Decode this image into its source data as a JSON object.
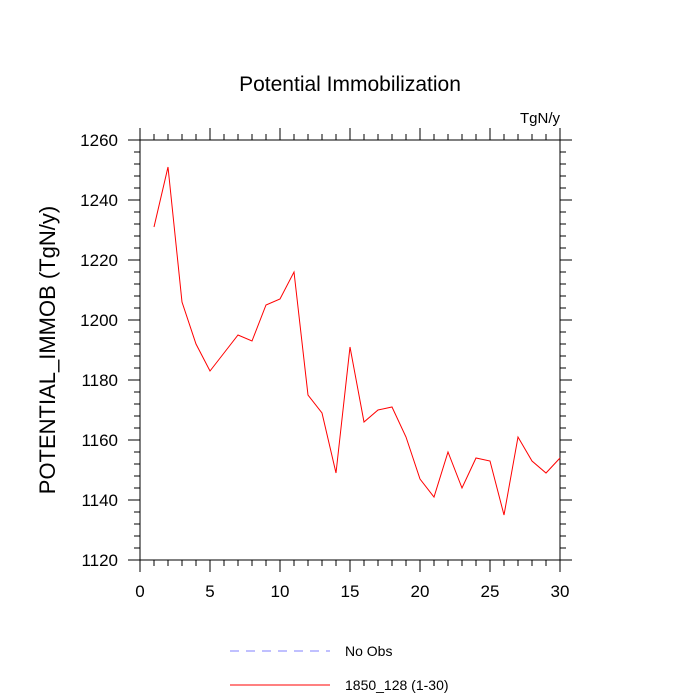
{
  "chart_data": {
    "type": "line",
    "title": "Potential Immobilization",
    "units_label": "TgN/y",
    "xlabel": "",
    "ylabel": "POTENTIAL_IMMOB  (TgN/y)",
    "xlim": [
      0,
      30
    ],
    "ylim": [
      1120,
      1260
    ],
    "x_ticks": [
      0,
      5,
      10,
      15,
      20,
      25,
      30
    ],
    "x_tick_labels": [
      "0",
      "5",
      "10",
      "15",
      "20",
      "25",
      "30"
    ],
    "y_ticks": [
      1120,
      1140,
      1160,
      1180,
      1200,
      1220,
      1240,
      1260
    ],
    "y_tick_labels": [
      "1120",
      "1140",
      "1160",
      "1180",
      "1200",
      "1220",
      "1240",
      "1260"
    ],
    "grid": false,
    "legend_position": "bottom-center",
    "series": [
      {
        "name": "No Obs",
        "color": "#8080ff",
        "dash": "dashed",
        "x": [],
        "values": []
      },
      {
        "name": "1850_128 (1-30)",
        "color": "#ff0000",
        "dash": "solid",
        "x": [
          1,
          2,
          3,
          4,
          5,
          6,
          7,
          8,
          9,
          10,
          11,
          12,
          13,
          14,
          15,
          16,
          17,
          18,
          19,
          20,
          21,
          22,
          23,
          24,
          25,
          26,
          27,
          28,
          29,
          30
        ],
        "values": [
          1231,
          1251,
          1206,
          1192,
          1183,
          1189,
          1195,
          1193,
          1205,
          1207,
          1216,
          1175,
          1169,
          1149,
          1191,
          1166,
          1170,
          1171,
          1161,
          1147,
          1141,
          1156,
          1144,
          1154,
          1153,
          1135,
          1161,
          1153,
          1149,
          1154
        ]
      }
    ]
  }
}
